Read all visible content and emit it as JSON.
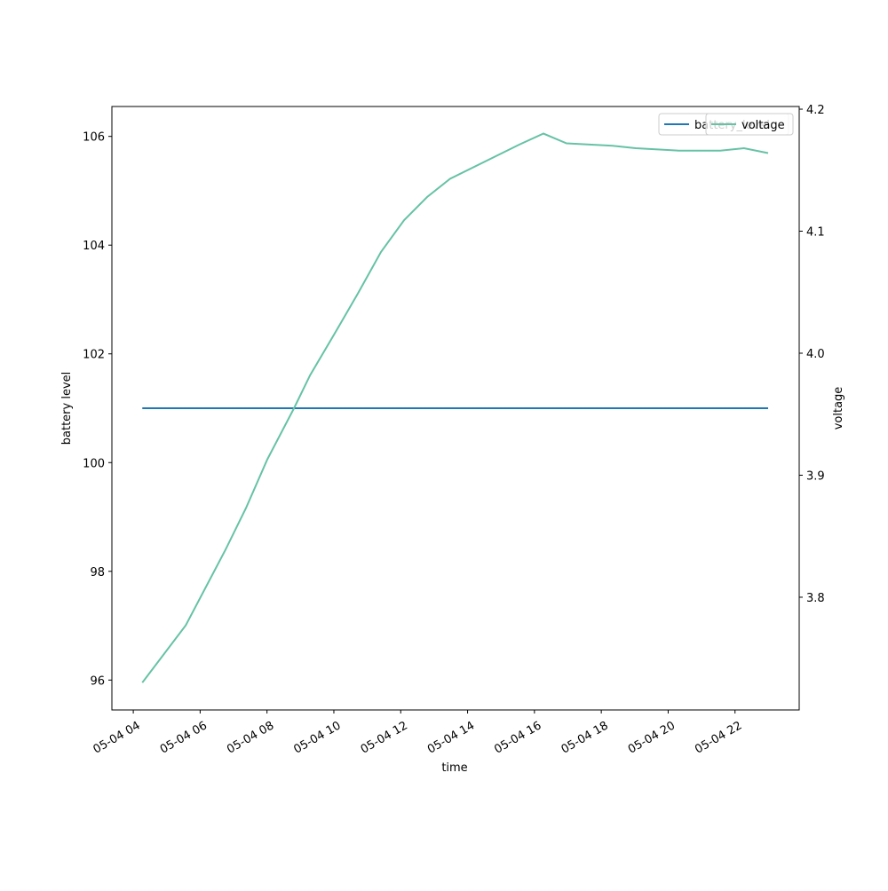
{
  "chart_data": {
    "type": "line",
    "xlabel": "time",
    "ylabel": "battery level",
    "y2label": "voltage",
    "x": [
      4.27,
      5.57,
      6.76,
      7.37,
      8.01,
      8.81,
      9.29,
      10.0,
      10.72,
      11.41,
      12.1,
      12.79,
      13.48,
      15.55,
      16.27,
      16.96,
      18.34,
      19.03,
      20.33,
      21.56,
      22.27,
      22.99
    ],
    "xlim": [
      3.36,
      23.92
    ],
    "xticks": [
      {
        "value": 4,
        "label": "05-04 04"
      },
      {
        "value": 6,
        "label": "05-04 06"
      },
      {
        "value": 8,
        "label": "05-04 08"
      },
      {
        "value": 10,
        "label": "05-04 10"
      },
      {
        "value": 12,
        "label": "05-04 12"
      },
      {
        "value": 14,
        "label": "05-04 14"
      },
      {
        "value": 16,
        "label": "05-04 16"
      },
      {
        "value": 18,
        "label": "05-04 18"
      },
      {
        "value": 20,
        "label": "05-04 20"
      },
      {
        "value": 22,
        "label": "05-04 22"
      }
    ],
    "ylim": [
      95.45,
      106.55
    ],
    "yticks": [
      96,
      98,
      100,
      102,
      104,
      106
    ],
    "y2lim": [
      3.7076,
      4.2022
    ],
    "y2ticks": [
      3.8,
      3.9,
      {
        "value": 4,
        "label": "4.0"
      },
      4.1,
      4.2
    ],
    "legend": "upper right",
    "series": [
      {
        "name": "battery_level",
        "color": "#1f77b4",
        "values": [
          101,
          101,
          101,
          101,
          101,
          101,
          101,
          101,
          101,
          101,
          101,
          101,
          101,
          101,
          101,
          101,
          101,
          101,
          101,
          101,
          101,
          101
        ]
      },
      {
        "name": "voltage",
        "color": "#66c2a5",
        "axis": "y2",
        "values": [
          3.73,
          3.777,
          3.839,
          3.873,
          3.913,
          3.955,
          3.982,
          4.015,
          4.049,
          4.083,
          4.109,
          4.128,
          4.143,
          4.171,
          4.18,
          4.172,
          4.17,
          4.168,
          4.166,
          4.166,
          4.168,
          4.164
        ]
      }
    ]
  }
}
